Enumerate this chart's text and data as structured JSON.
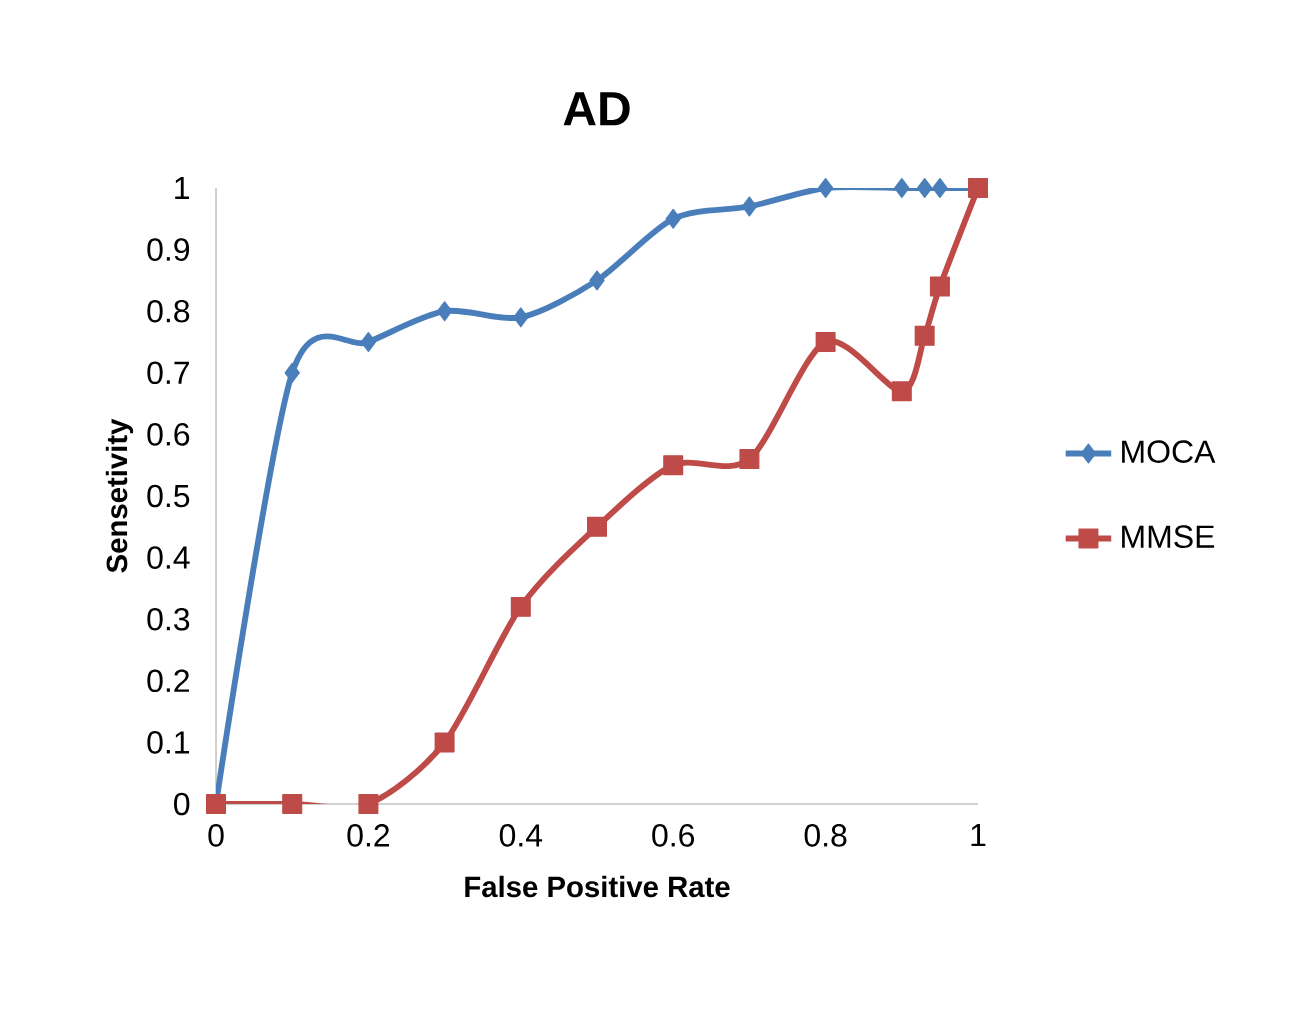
{
  "chart_data": {
    "type": "line",
    "title": "AD",
    "xlabel": "False Positive Rate",
    "ylabel": "Sensetivity",
    "xlim": [
      0,
      1
    ],
    "ylim": [
      0,
      1
    ],
    "xticks": [
      0,
      0.2,
      0.4,
      0.6,
      0.8,
      1
    ],
    "yticks": [
      0,
      0.1,
      0.2,
      0.3,
      0.4,
      0.5,
      0.6,
      0.7,
      0.8,
      0.9,
      1
    ],
    "series": [
      {
        "name": "MOCA",
        "color": "#4a7ebb",
        "marker": "diamond",
        "x": [
          0,
          0.1,
          0.2,
          0.3,
          0.4,
          0.5,
          0.6,
          0.7,
          0.8,
          0.9,
          0.93,
          0.95,
          1
        ],
        "values": [
          0,
          0.7,
          0.75,
          0.8,
          0.79,
          0.85,
          0.95,
          0.97,
          1,
          1,
          1,
          1,
          1
        ]
      },
      {
        "name": "MMSE",
        "color": "#be4b48",
        "marker": "square",
        "x": [
          0,
          0.1,
          0.2,
          0.3,
          0.4,
          0.5,
          0.6,
          0.7,
          0.8,
          0.9,
          0.93,
          0.95,
          1
        ],
        "values": [
          0,
          0,
          0,
          0.1,
          0.32,
          0.45,
          0.55,
          0.56,
          0.75,
          0.67,
          0.76,
          0.84,
          1
        ]
      }
    ],
    "legend": "right",
    "grid": false,
    "line_style": "solid"
  }
}
